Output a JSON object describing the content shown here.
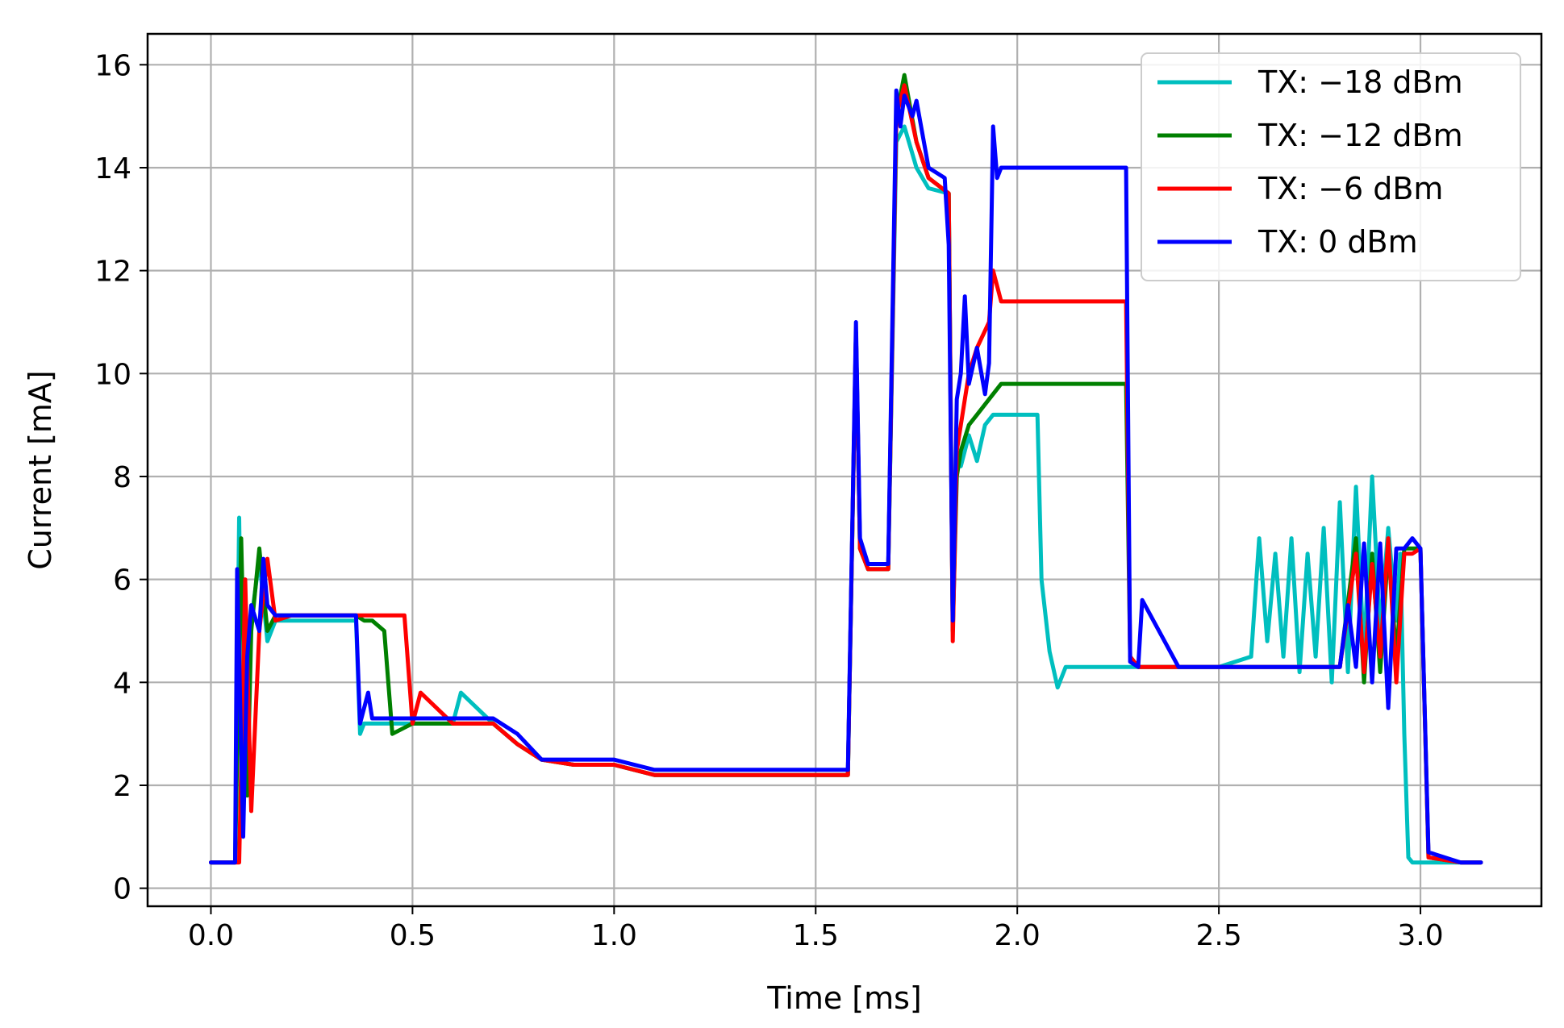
{
  "chart_data": {
    "type": "line",
    "xlabel": "Time [ms]",
    "ylabel": "Current [mA]",
    "xlim": [
      -0.157,
      3.3
    ],
    "ylim": [
      -0.35,
      16.6
    ],
    "xticks": [
      0.0,
      0.5,
      1.0,
      1.5,
      2.0,
      2.5,
      3.0
    ],
    "xtick_labels": [
      "0.0",
      "0.5",
      "1.0",
      "1.5",
      "2.0",
      "2.5",
      "3.0"
    ],
    "yticks": [
      0,
      2,
      4,
      6,
      8,
      10,
      12,
      14,
      16
    ],
    "ytick_labels": [
      "0",
      "2",
      "4",
      "6",
      "8",
      "10",
      "12",
      "14",
      "16"
    ],
    "grid": true,
    "legend_position": "top-right",
    "series": [
      {
        "name": "TX: −18 dBm",
        "color": "#00bfbf",
        "x": [
          0.0,
          0.06,
          0.07,
          0.08,
          0.1,
          0.12,
          0.14,
          0.16,
          0.2,
          0.3,
          0.36,
          0.37,
          0.38,
          0.4,
          0.5,
          0.6,
          0.62,
          0.7,
          0.76,
          0.82,
          0.9,
          1.0,
          1.1,
          1.2,
          1.3,
          1.4,
          1.5,
          1.58,
          1.6,
          1.61,
          1.63,
          1.65,
          1.68,
          1.7,
          1.72,
          1.75,
          1.78,
          1.83,
          1.84,
          1.85,
          1.86,
          1.88,
          1.9,
          1.92,
          1.94,
          1.96,
          2.0,
          2.05,
          2.06,
          2.08,
          2.1,
          2.12,
          2.2,
          2.3,
          2.4,
          2.5,
          2.58,
          2.6,
          2.62,
          2.64,
          2.66,
          2.68,
          2.7,
          2.72,
          2.74,
          2.76,
          2.78,
          2.8,
          2.82,
          2.84,
          2.86,
          2.88,
          2.9,
          2.92,
          2.94,
          2.95,
          2.96,
          2.97,
          2.98,
          3.0,
          3.05,
          3.1,
          3.15
        ],
        "y": [
          0.5,
          0.5,
          7.2,
          1.5,
          5.2,
          6.4,
          4.8,
          5.2,
          5.2,
          5.2,
          5.2,
          3.0,
          3.2,
          3.2,
          3.2,
          3.2,
          3.8,
          3.2,
          2.8,
          2.5,
          2.4,
          2.4,
          2.2,
          2.2,
          2.2,
          2.2,
          2.2,
          2.2,
          10.8,
          6.6,
          6.2,
          6.2,
          6.2,
          14.5,
          14.8,
          14.0,
          13.6,
          13.5,
          5.0,
          8.5,
          8.2,
          8.8,
          8.3,
          9.0,
          9.2,
          9.2,
          9.2,
          9.2,
          6.0,
          4.6,
          3.9,
          4.3,
          4.3,
          4.3,
          4.3,
          4.3,
          4.5,
          6.8,
          4.8,
          6.5,
          4.5,
          6.8,
          4.2,
          6.5,
          4.5,
          7.0,
          4.0,
          7.5,
          4.2,
          7.8,
          4.5,
          8.0,
          5.0,
          7.0,
          5.2,
          6.5,
          3.0,
          0.6,
          0.5,
          0.5,
          0.5,
          0.5,
          0.5
        ]
      },
      {
        "name": "TX: −12 dBm",
        "color": "#008000",
        "x": [
          0.0,
          0.06,
          0.075,
          0.09,
          0.1,
          0.12,
          0.14,
          0.16,
          0.2,
          0.3,
          0.36,
          0.38,
          0.4,
          0.43,
          0.45,
          0.5,
          0.6,
          0.7,
          0.76,
          0.82,
          0.9,
          1.0,
          1.1,
          1.2,
          1.3,
          1.4,
          1.5,
          1.58,
          1.6,
          1.61,
          1.63,
          1.65,
          1.68,
          1.7,
          1.72,
          1.75,
          1.78,
          1.83,
          1.84,
          1.85,
          1.86,
          1.88,
          1.9,
          1.93,
          1.96,
          2.0,
          2.1,
          2.2,
          2.27,
          2.28,
          2.3,
          2.4,
          2.5,
          2.6,
          2.7,
          2.8,
          2.84,
          2.86,
          2.88,
          2.9,
          2.92,
          2.94,
          2.96,
          2.98,
          3.0,
          3.02,
          3.1,
          3.15
        ],
        "y": [
          0.5,
          0.5,
          6.8,
          1.8,
          5.0,
          6.6,
          5.0,
          5.3,
          5.3,
          5.3,
          5.3,
          5.2,
          5.2,
          5.0,
          3.0,
          3.2,
          3.2,
          3.2,
          2.8,
          2.5,
          2.4,
          2.4,
          2.2,
          2.2,
          2.2,
          2.2,
          2.2,
          2.2,
          10.8,
          6.6,
          6.2,
          6.2,
          6.2,
          15.0,
          15.8,
          14.5,
          13.8,
          13.5,
          5.0,
          8.0,
          8.5,
          9.0,
          9.2,
          9.5,
          9.8,
          9.8,
          9.8,
          9.8,
          9.8,
          4.5,
          4.3,
          4.3,
          4.3,
          4.3,
          4.3,
          4.3,
          6.8,
          4.0,
          6.5,
          4.2,
          6.6,
          4.5,
          6.6,
          6.6,
          6.6,
          0.6,
          0.5,
          0.5
        ]
      },
      {
        "name": "TX: −6 dBm",
        "color": "#ff0000",
        "x": [
          0.0,
          0.07,
          0.085,
          0.1,
          0.12,
          0.14,
          0.16,
          0.2,
          0.3,
          0.36,
          0.4,
          0.48,
          0.5,
          0.52,
          0.6,
          0.7,
          0.76,
          0.82,
          0.9,
          1.0,
          1.1,
          1.2,
          1.3,
          1.4,
          1.5,
          1.58,
          1.6,
          1.61,
          1.63,
          1.65,
          1.68,
          1.7,
          1.72,
          1.75,
          1.78,
          1.83,
          1.84,
          1.85,
          1.86,
          1.88,
          1.9,
          1.93,
          1.94,
          1.96,
          2.0,
          2.1,
          2.2,
          2.27,
          2.28,
          2.3,
          2.4,
          2.5,
          2.6,
          2.7,
          2.8,
          2.84,
          2.86,
          2.88,
          2.9,
          2.92,
          2.94,
          2.96,
          2.98,
          3.0,
          3.02,
          3.1,
          3.15
        ],
        "y": [
          0.5,
          0.5,
          6.0,
          1.5,
          5.0,
          6.4,
          5.2,
          5.3,
          5.3,
          5.3,
          5.3,
          5.3,
          3.2,
          3.8,
          3.2,
          3.2,
          2.8,
          2.5,
          2.4,
          2.4,
          2.2,
          2.2,
          2.2,
          2.2,
          2.2,
          2.2,
          10.8,
          6.6,
          6.2,
          6.2,
          6.2,
          15.0,
          15.6,
          14.5,
          13.8,
          13.5,
          4.8,
          8.5,
          9.0,
          10.0,
          10.5,
          11.0,
          12.0,
          11.4,
          11.4,
          11.4,
          11.4,
          11.4,
          4.5,
          4.3,
          4.3,
          4.3,
          4.3,
          4.3,
          4.3,
          6.5,
          4.2,
          6.3,
          4.5,
          6.8,
          4.0,
          6.5,
          6.5,
          6.6,
          0.6,
          0.5,
          0.5
        ]
      },
      {
        "name": "TX: 0 dBm",
        "color": "#0000ff",
        "x": [
          0.0,
          0.06,
          0.065,
          0.08,
          0.09,
          0.1,
          0.12,
          0.13,
          0.14,
          0.16,
          0.2,
          0.3,
          0.36,
          0.37,
          0.39,
          0.4,
          0.5,
          0.6,
          0.7,
          0.76,
          0.82,
          0.9,
          1.0,
          1.1,
          1.2,
          1.3,
          1.4,
          1.5,
          1.58,
          1.6,
          1.61,
          1.63,
          1.65,
          1.68,
          1.7,
          1.71,
          1.72,
          1.74,
          1.75,
          1.78,
          1.82,
          1.83,
          1.84,
          1.85,
          1.86,
          1.87,
          1.88,
          1.9,
          1.92,
          1.93,
          1.94,
          1.95,
          1.96,
          2.0,
          2.1,
          2.2,
          2.27,
          2.28,
          2.3,
          2.31,
          2.4,
          2.5,
          2.6,
          2.7,
          2.8,
          2.82,
          2.84,
          2.86,
          2.88,
          2.9,
          2.92,
          2.94,
          2.96,
          2.98,
          3.0,
          3.02,
          3.1,
          3.15
        ],
        "y": [
          0.5,
          0.5,
          6.2,
          1.0,
          4.5,
          5.5,
          5.0,
          6.4,
          5.5,
          5.3,
          5.3,
          5.3,
          5.3,
          3.2,
          3.8,
          3.3,
          3.3,
          3.3,
          3.3,
          3.0,
          2.5,
          2.5,
          2.5,
          2.3,
          2.3,
          2.3,
          2.3,
          2.3,
          2.3,
          11.0,
          6.8,
          6.3,
          6.3,
          6.3,
          15.5,
          14.8,
          15.4,
          15.0,
          15.3,
          14.0,
          13.8,
          12.5,
          5.2,
          9.5,
          10.0,
          11.5,
          9.8,
          10.5,
          9.6,
          10.2,
          14.8,
          13.8,
          14.0,
          14.0,
          14.0,
          14.0,
          14.0,
          4.4,
          4.3,
          5.6,
          4.3,
          4.3,
          4.3,
          4.3,
          4.3,
          5.5,
          4.3,
          6.7,
          4.0,
          6.7,
          3.5,
          6.6,
          6.6,
          6.8,
          6.6,
          0.7,
          0.5,
          0.5
        ]
      }
    ]
  }
}
